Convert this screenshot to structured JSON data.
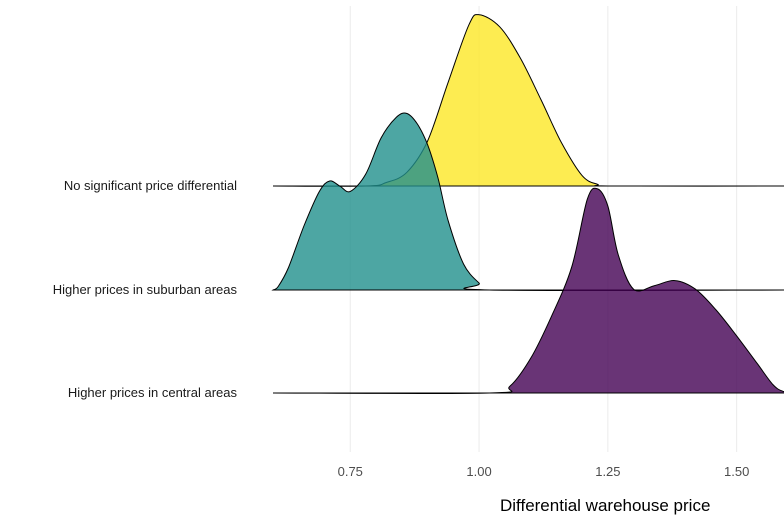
{
  "chart_data": {
    "type": "ridgeline",
    "title": "",
    "xlabel": "Differential warehouse price",
    "ylabel": "",
    "xlim": [
      0.6,
      1.62
    ],
    "grid": true,
    "legend": "none",
    "x_ticks": [
      0.75,
      1.0,
      1.25,
      1.5
    ],
    "x_tick_labels": [
      "0.75",
      "1.00",
      "1.25",
      "1.50"
    ],
    "series": [
      {
        "name": "No significant price differential",
        "color": "#fde725",
        "x": [
          0.6,
          0.78,
          0.82,
          0.86,
          0.9,
          0.94,
          0.98,
          1.0,
          1.04,
          1.08,
          1.12,
          1.16,
          1.2,
          1.23,
          1.26,
          1.62
        ],
        "density": [
          0,
          0,
          0.02,
          0.08,
          0.26,
          0.6,
          0.93,
          0.99,
          0.92,
          0.74,
          0.5,
          0.25,
          0.06,
          0.01,
          0,
          0
        ]
      },
      {
        "name": "Higher prices in suburban areas",
        "color": "#21908c",
        "x": [
          0.6,
          0.61,
          0.63,
          0.66,
          0.69,
          0.71,
          0.73,
          0.75,
          0.78,
          0.81,
          0.84,
          0.86,
          0.88,
          0.9,
          0.92,
          0.94,
          0.97,
          1.0,
          1.02,
          1.62
        ],
        "density": [
          0,
          0.02,
          0.13,
          0.37,
          0.57,
          0.63,
          0.6,
          0.57,
          0.67,
          0.88,
          1.0,
          1.02,
          0.96,
          0.84,
          0.65,
          0.4,
          0.15,
          0.04,
          0,
          0
        ]
      },
      {
        "name": "Higher prices in central areas",
        "color": "#440154",
        "x": [
          0.6,
          1.02,
          1.06,
          1.1,
          1.14,
          1.18,
          1.21,
          1.23,
          1.25,
          1.27,
          1.3,
          1.34,
          1.38,
          1.42,
          1.46,
          1.5,
          1.54,
          1.57,
          1.59,
          1.62
        ],
        "density": [
          0,
          0,
          0.04,
          0.2,
          0.44,
          0.73,
          1.12,
          1.18,
          1.08,
          0.8,
          0.6,
          0.62,
          0.65,
          0.6,
          0.48,
          0.33,
          0.17,
          0.05,
          0.01,
          0
        ]
      }
    ]
  }
}
